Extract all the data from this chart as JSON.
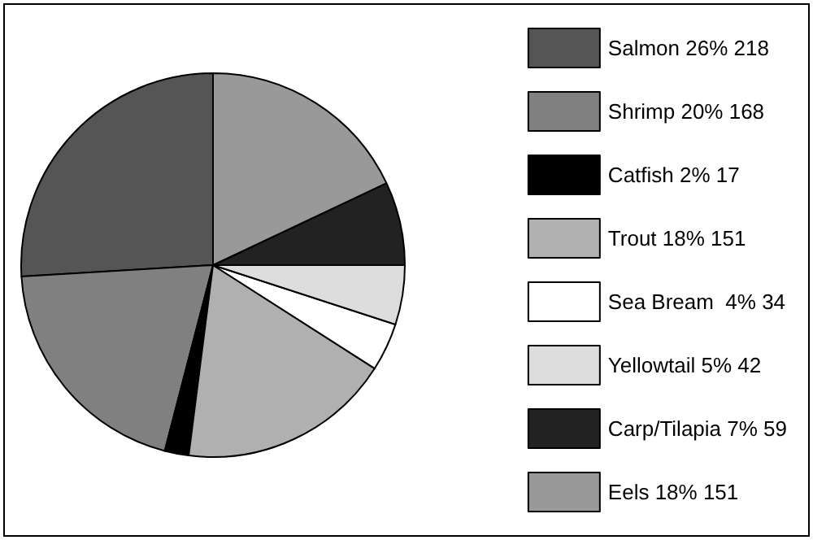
{
  "chart_data": {
    "type": "pie",
    "categories": [
      "Salmon 26% 218",
      "Shrimp 20% 168",
      "Catfish 2% 17",
      "Trout 18% 151",
      "Sea Bream  4% 34",
      "Yellowtail 5% 42",
      "Carp/Tilapia 7% 59",
      "Eels 18% 151"
    ],
    "values": [
      218,
      168,
      17,
      151,
      34,
      42,
      59,
      151
    ],
    "colors": [
      "#555555",
      "#808080",
      "#000000",
      "#b0b0b0",
      "#ffffff",
      "#dddddd",
      "#222222",
      "#999999"
    ],
    "legend": "right"
  }
}
